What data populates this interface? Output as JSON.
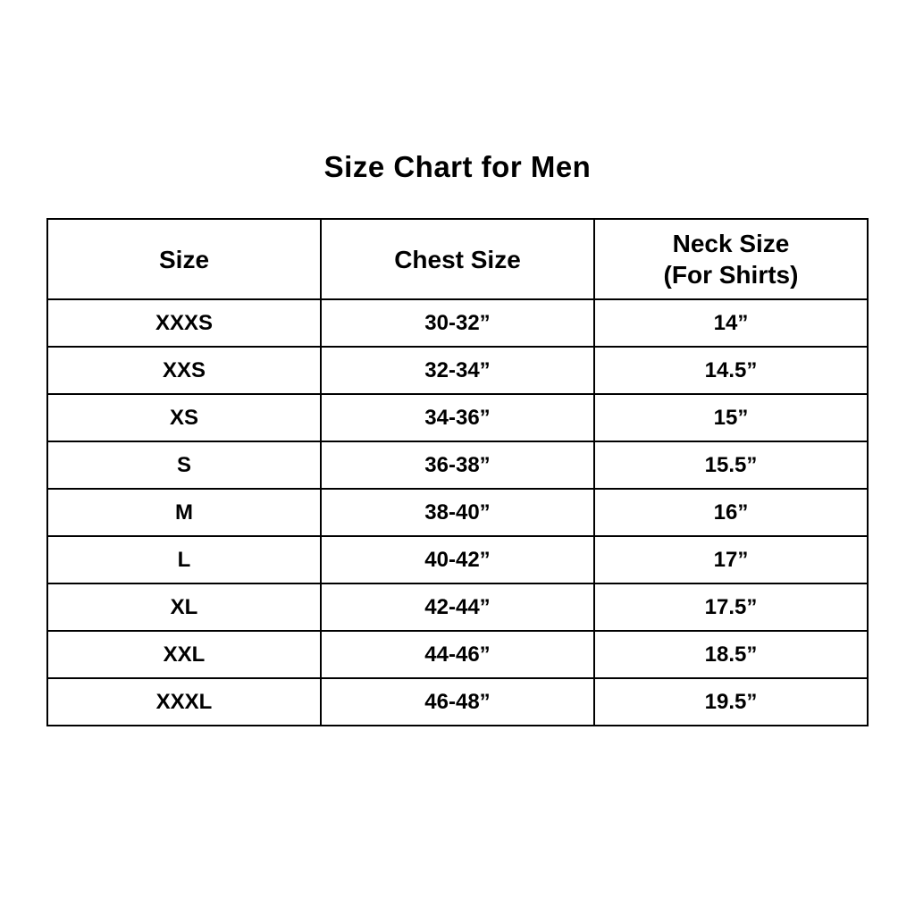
{
  "title": "Size Chart for Men",
  "colors": {
    "background": "#ffffff",
    "text": "#000000",
    "border": "#000000"
  },
  "table": {
    "headers": [
      {
        "label": "Size",
        "sub": ""
      },
      {
        "label": "Chest Size",
        "sub": ""
      },
      {
        "label": "Neck Size",
        "sub": "(For Shirts)"
      }
    ],
    "rows": [
      [
        "XXXS",
        "30-32”",
        "14”"
      ],
      [
        "XXS",
        "32-34”",
        "14.5”"
      ],
      [
        "XS",
        "34-36”",
        "15”"
      ],
      [
        "S",
        "36-38”",
        "15.5”"
      ],
      [
        "M",
        "38-40”",
        "16”"
      ],
      [
        "L",
        "40-42”",
        "17”"
      ],
      [
        "XL",
        "42-44”",
        "17.5”"
      ],
      [
        "XXL",
        "44-46”",
        "18.5”"
      ],
      [
        "XXXL",
        "46-48”",
        "19.5”"
      ]
    ]
  },
  "chart_data": {
    "type": "table",
    "title": "Size Chart for Men",
    "columns": [
      "Size",
      "Chest Size",
      "Neck Size (For Shirts)"
    ],
    "rows": [
      {
        "size": "XXXS",
        "chest_size": "30-32”",
        "neck_size": "14”"
      },
      {
        "size": "XXS",
        "chest_size": "32-34”",
        "neck_size": "14.5”"
      },
      {
        "size": "XS",
        "chest_size": "34-36”",
        "neck_size": "15”"
      },
      {
        "size": "S",
        "chest_size": "36-38”",
        "neck_size": "15.5”"
      },
      {
        "size": "M",
        "chest_size": "38-40”",
        "neck_size": "16”"
      },
      {
        "size": "L",
        "chest_size": "40-42”",
        "neck_size": "17”"
      },
      {
        "size": "XL",
        "chest_size": "42-44”",
        "neck_size": "17.5”"
      },
      {
        "size": "XXL",
        "chest_size": "44-46”",
        "neck_size": "18.5”"
      },
      {
        "size": "XXXL",
        "chest_size": "46-48”",
        "neck_size": "19.5”"
      }
    ],
    "layout": {
      "grid": true,
      "header_rows": 1,
      "num_data_rows": 9,
      "num_columns": 3
    }
  }
}
